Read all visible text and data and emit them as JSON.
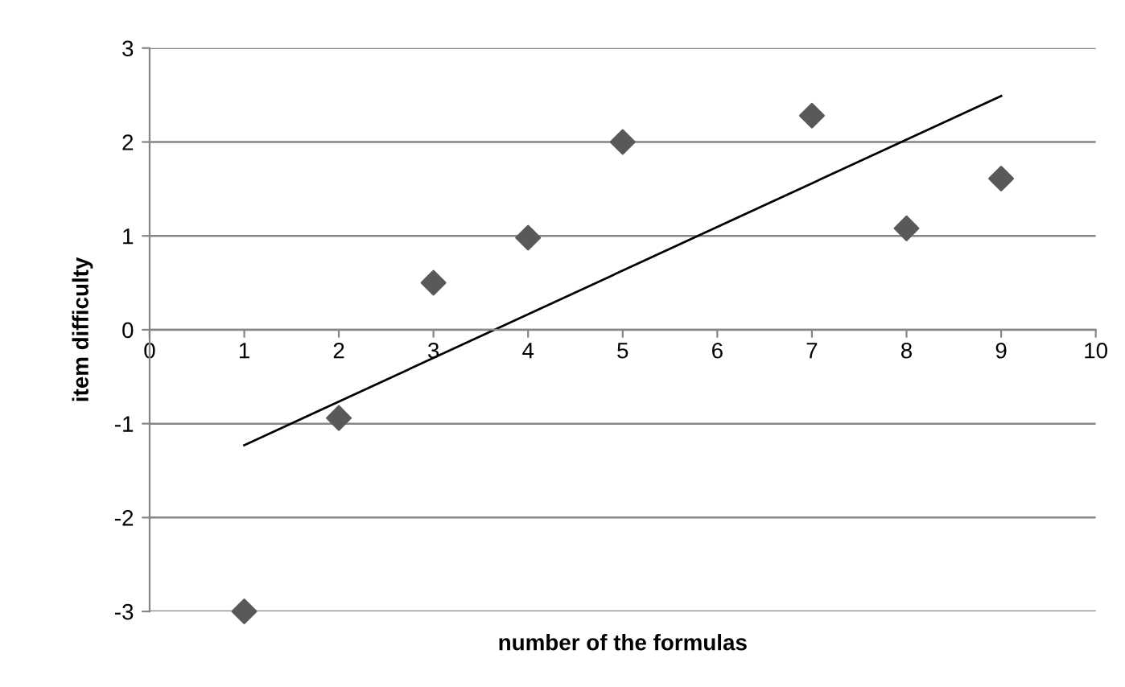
{
  "chart_data": {
    "type": "scatter",
    "xlabel": "number of the formulas",
    "ylabel": "item difficulty",
    "series": [
      {
        "color": "#595959",
        "marker": "diamond",
        "x": [
          1,
          2,
          3,
          4,
          5,
          7,
          8,
          9
        ],
        "values": [
          -3,
          -0.94,
          0.5,
          0.98,
          2,
          2.28,
          1.08,
          1.61
        ]
      },
      {
        "type": "line",
        "color": "#000000",
        "marker": "none",
        "line_style": "solid",
        "x": [
          1,
          9
        ],
        "values": [
          -1.23,
          2.49
        ]
      }
    ],
    "xlim": [
      0,
      10
    ],
    "ylim": [
      -3,
      3
    ],
    "xticks": [
      0,
      1,
      2,
      3,
      4,
      5,
      6,
      7,
      8,
      9,
      10
    ],
    "yticks": [
      -3,
      -2,
      -1,
      0,
      1,
      2,
      3
    ],
    "grid": "y",
    "legend": false
  }
}
